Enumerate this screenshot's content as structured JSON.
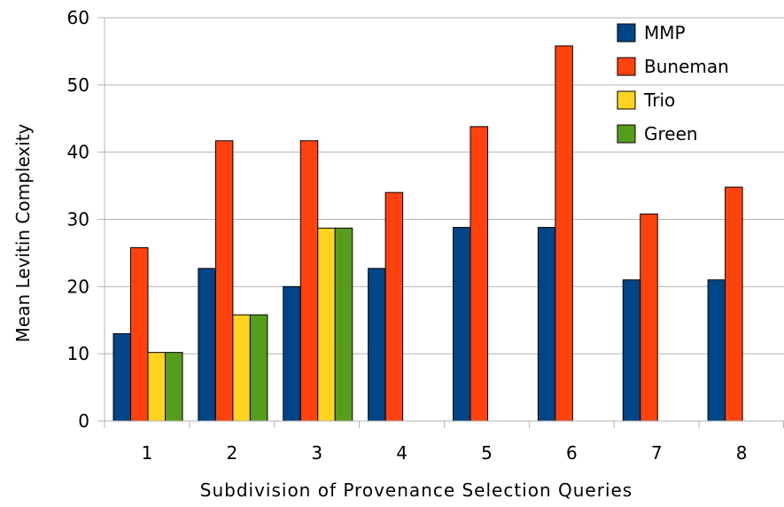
{
  "chart_data": {
    "type": "bar",
    "title": "",
    "xlabel": "Subdivision of Provenance Selection Queries",
    "ylabel": "Mean Levitin Complexity",
    "ylim": [
      0,
      60
    ],
    "yticks": [
      0,
      10,
      20,
      30,
      40,
      50,
      60
    ],
    "grid": true,
    "legend_position": "top-right",
    "categories": [
      "1",
      "2",
      "3",
      "4",
      "5",
      "6",
      "7",
      "8"
    ],
    "series": [
      {
        "name": "MMP",
        "color": "#004586",
        "values": [
          13,
          22.7,
          20,
          22.7,
          28.8,
          28.8,
          21,
          21
        ]
      },
      {
        "name": "Buneman",
        "color": "#ff420e",
        "values": [
          25.8,
          41.7,
          41.7,
          34,
          43.8,
          55.8,
          30.8,
          34.8
        ]
      },
      {
        "name": "Trio",
        "color": "#ffd320",
        "values": [
          10.2,
          15.8,
          28.7,
          null,
          null,
          null,
          null,
          null
        ]
      },
      {
        "name": "Green",
        "color": "#579d1c",
        "values": [
          10.2,
          15.8,
          28.7,
          null,
          null,
          null,
          null,
          null
        ]
      }
    ]
  }
}
